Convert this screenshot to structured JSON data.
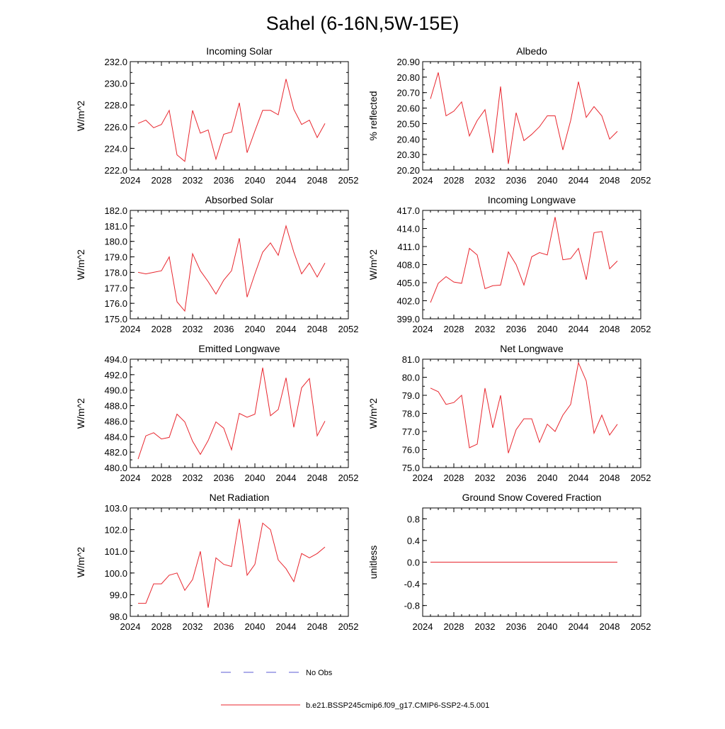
{
  "title": "Sahel (6-16N,5W-15E)",
  "legend": {
    "entries": [
      {
        "label": "No Obs",
        "style": "dashed",
        "color": "#5b5bd6"
      },
      {
        "label": "b.e21.BSSP245cmip6.f09_g17.CMIP6-SSP2-4.5.001",
        "style": "solid",
        "color": "#e8262e"
      }
    ]
  },
  "chart_data": [
    {
      "type": "line",
      "title": "Incoming Solar",
      "ylabel": "W/m^2",
      "xlim": [
        2024,
        2052
      ],
      "ylim": [
        222.0,
        232.0
      ],
      "xticks": [
        2024,
        2028,
        2032,
        2036,
        2040,
        2044,
        2048,
        2052
      ],
      "xtick_labels": [
        "2024",
        "2028",
        "2032",
        "2036",
        "2040",
        "2044",
        "2048",
        "2052"
      ],
      "yticks": [
        222.0,
        224.0,
        226.0,
        228.0,
        230.0,
        232.0
      ],
      "ytick_labels": [
        "222.0",
        "224.0",
        "226.0",
        "228.0",
        "230.0",
        "232.0"
      ],
      "x": [
        2025,
        2026,
        2027,
        2028,
        2029,
        2030,
        2031,
        2032,
        2033,
        2034,
        2035,
        2036,
        2037,
        2038,
        2039,
        2040,
        2041,
        2042,
        2043,
        2044,
        2045,
        2046,
        2047,
        2048,
        2049
      ],
      "values": [
        226.3,
        226.6,
        225.9,
        226.2,
        227.5,
        223.4,
        222.8,
        227.5,
        225.4,
        225.7,
        223.0,
        225.3,
        225.5,
        228.2,
        223.6,
        225.6,
        227.5,
        227.5,
        227.1,
        230.4,
        227.6,
        226.2,
        226.6,
        225.0,
        226.3
      ],
      "color": "#e8262e"
    },
    {
      "type": "line",
      "title": "Albedo",
      "ylabel": "% reflected",
      "xlim": [
        2024,
        2052
      ],
      "ylim": [
        20.2,
        20.9
      ],
      "xticks": [
        2024,
        2028,
        2032,
        2036,
        2040,
        2044,
        2048,
        2052
      ],
      "xtick_labels": [
        "2024",
        "2028",
        "2032",
        "2036",
        "2040",
        "2044",
        "2048",
        "2052"
      ],
      "yticks": [
        20.2,
        20.3,
        20.4,
        20.5,
        20.6,
        20.7,
        20.8,
        20.9
      ],
      "ytick_labels": [
        "20.20",
        "20.30",
        "20.40",
        "20.50",
        "20.60",
        "20.70",
        "20.80",
        "20.90"
      ],
      "x": [
        2025,
        2026,
        2027,
        2028,
        2029,
        2030,
        2031,
        2032,
        2033,
        2034,
        2035,
        2036,
        2037,
        2038,
        2039,
        2040,
        2041,
        2042,
        2043,
        2044,
        2045,
        2046,
        2047,
        2048,
        2049
      ],
      "values": [
        20.66,
        20.83,
        20.55,
        20.58,
        20.64,
        20.42,
        20.52,
        20.59,
        20.31,
        20.74,
        20.24,
        20.57,
        20.39,
        20.43,
        20.48,
        20.55,
        20.55,
        20.33,
        20.52,
        20.77,
        20.54,
        20.61,
        20.55,
        20.4,
        20.45
      ],
      "color": "#e8262e"
    },
    {
      "type": "line",
      "title": "Absorbed Solar",
      "ylabel": "W/m^2",
      "xlim": [
        2024,
        2052
      ],
      "ylim": [
        175.0,
        182.0
      ],
      "xticks": [
        2024,
        2028,
        2032,
        2036,
        2040,
        2044,
        2048,
        2052
      ],
      "xtick_labels": [
        "2024",
        "2028",
        "2032",
        "2036",
        "2040",
        "2044",
        "2048",
        "2052"
      ],
      "yticks": [
        175,
        176,
        177,
        178,
        179,
        180,
        181,
        182
      ],
      "ytick_labels": [
        "175.0",
        "176.0",
        "177.0",
        "178.0",
        "179.0",
        "180.0",
        "181.0",
        "182.0"
      ],
      "x": [
        2025,
        2026,
        2027,
        2028,
        2029,
        2030,
        2031,
        2032,
        2033,
        2034,
        2035,
        2036,
        2037,
        2038,
        2039,
        2040,
        2041,
        2042,
        2043,
        2044,
        2045,
        2046,
        2047,
        2048,
        2049
      ],
      "values": [
        178.0,
        177.9,
        178.0,
        178.1,
        179.0,
        176.1,
        175.5,
        179.2,
        178.1,
        177.4,
        176.6,
        177.5,
        178.1,
        180.2,
        176.4,
        177.9,
        179.3,
        179.9,
        179.1,
        181.0,
        179.3,
        177.9,
        178.6,
        177.7,
        178.6
      ],
      "color": "#e8262e"
    },
    {
      "type": "line",
      "title": "Incoming Longwave",
      "ylabel": "W/m^2",
      "xlim": [
        2024,
        2052
      ],
      "ylim": [
        399.0,
        417.0
      ],
      "xticks": [
        2024,
        2028,
        2032,
        2036,
        2040,
        2044,
        2048,
        2052
      ],
      "xtick_labels": [
        "2024",
        "2028",
        "2032",
        "2036",
        "2040",
        "2044",
        "2048",
        "2052"
      ],
      "yticks": [
        399,
        402,
        405,
        408,
        411,
        414,
        417
      ],
      "ytick_labels": [
        "399.0",
        "402.0",
        "405.0",
        "408.0",
        "411.0",
        "414.0",
        "417.0"
      ],
      "x": [
        2025,
        2026,
        2027,
        2028,
        2029,
        2030,
        2031,
        2032,
        2033,
        2034,
        2035,
        2036,
        2037,
        2038,
        2039,
        2040,
        2041,
        2042,
        2043,
        2044,
        2045,
        2046,
        2047,
        2048,
        2049
      ],
      "values": [
        401.7,
        404.9,
        406.0,
        405.1,
        404.9,
        410.7,
        409.6,
        404.0,
        404.5,
        404.6,
        410.1,
        408.0,
        404.6,
        409.3,
        410.0,
        409.6,
        415.9,
        408.8,
        409.0,
        410.7,
        405.5,
        413.3,
        413.5,
        407.3,
        408.6
      ],
      "color": "#e8262e"
    },
    {
      "type": "line",
      "title": "Emitted Longwave",
      "ylabel": "W/m^2",
      "xlim": [
        2024,
        2052
      ],
      "ylim": [
        480.0,
        494.0
      ],
      "xticks": [
        2024,
        2028,
        2032,
        2036,
        2040,
        2044,
        2048,
        2052
      ],
      "xtick_labels": [
        "2024",
        "2028",
        "2032",
        "2036",
        "2040",
        "2044",
        "2048",
        "2052"
      ],
      "yticks": [
        480,
        482,
        484,
        486,
        488,
        490,
        492,
        494
      ],
      "ytick_labels": [
        "480.0",
        "482.0",
        "484.0",
        "486.0",
        "488.0",
        "490.0",
        "492.0",
        "494.0"
      ],
      "x": [
        2025,
        2026,
        2027,
        2028,
        2029,
        2030,
        2031,
        2032,
        2033,
        2034,
        2035,
        2036,
        2037,
        2038,
        2039,
        2040,
        2041,
        2042,
        2043,
        2044,
        2045,
        2046,
        2047,
        2048,
        2049
      ],
      "values": [
        481.1,
        484.1,
        484.5,
        483.7,
        483.9,
        486.9,
        485.9,
        483.4,
        481.7,
        483.5,
        485.9,
        485.1,
        482.3,
        487.0,
        486.5,
        486.9,
        492.9,
        486.7,
        487.5,
        491.6,
        485.2,
        490.3,
        491.5,
        484.1,
        486.0
      ],
      "color": "#e8262e"
    },
    {
      "type": "line",
      "title": "Net Longwave",
      "ylabel": "W/m^2",
      "xlim": [
        2024,
        2052
      ],
      "ylim": [
        75.0,
        81.0
      ],
      "xticks": [
        2024,
        2028,
        2032,
        2036,
        2040,
        2044,
        2048,
        2052
      ],
      "xtick_labels": [
        "2024",
        "2028",
        "2032",
        "2036",
        "2040",
        "2044",
        "2048",
        "2052"
      ],
      "yticks": [
        75,
        76,
        77,
        78,
        79,
        80,
        81
      ],
      "ytick_labels": [
        "75.0",
        "76.0",
        "77.0",
        "78.0",
        "79.0",
        "80.0",
        "81.0"
      ],
      "x": [
        2025,
        2026,
        2027,
        2028,
        2029,
        2030,
        2031,
        2032,
        2033,
        2034,
        2035,
        2036,
        2037,
        2038,
        2039,
        2040,
        2041,
        2042,
        2043,
        2044,
        2045,
        2046,
        2047,
        2048,
        2049
      ],
      "values": [
        79.4,
        79.2,
        78.5,
        78.6,
        79.0,
        76.1,
        76.3,
        79.4,
        77.2,
        79.0,
        75.8,
        77.1,
        77.7,
        77.7,
        76.4,
        77.4,
        77.0,
        77.9,
        78.5,
        80.8,
        79.8,
        76.9,
        77.9,
        76.8,
        77.4
      ],
      "color": "#e8262e"
    },
    {
      "type": "line",
      "title": "Net Radiation",
      "ylabel": "W/m^2",
      "xlim": [
        2024,
        2052
      ],
      "ylim": [
        98.0,
        103.0
      ],
      "xticks": [
        2024,
        2028,
        2032,
        2036,
        2040,
        2044,
        2048,
        2052
      ],
      "xtick_labels": [
        "2024",
        "2028",
        "2032",
        "2036",
        "2040",
        "2044",
        "2048",
        "2052"
      ],
      "yticks": [
        98,
        99,
        100,
        101,
        102,
        103
      ],
      "ytick_labels": [
        "98.0",
        "99.0",
        "100.0",
        "101.0",
        "102.0",
        "103.0"
      ],
      "x": [
        2025,
        2026,
        2027,
        2028,
        2029,
        2030,
        2031,
        2032,
        2033,
        2034,
        2035,
        2036,
        2037,
        2038,
        2039,
        2040,
        2041,
        2042,
        2043,
        2044,
        2045,
        2046,
        2047,
        2048,
        2049
      ],
      "values": [
        98.6,
        98.6,
        99.5,
        99.5,
        99.9,
        100.0,
        99.2,
        99.7,
        101.0,
        98.4,
        100.7,
        100.4,
        100.3,
        102.5,
        99.9,
        100.4,
        102.3,
        102.0,
        100.6,
        100.2,
        99.6,
        100.9,
        100.7,
        100.9,
        101.2
      ],
      "color": "#e8262e"
    },
    {
      "type": "line",
      "title": "Ground Snow Covered Fraction",
      "ylabel": "unitless",
      "xlim": [
        2024,
        2052
      ],
      "ylim": [
        -1.0,
        1.0
      ],
      "xticks": [
        2024,
        2028,
        2032,
        2036,
        2040,
        2044,
        2048,
        2052
      ],
      "xtick_labels": [
        "2024",
        "2028",
        "2032",
        "2036",
        "2040",
        "2044",
        "2048",
        "2052"
      ],
      "yticks": [
        -0.8,
        -0.4,
        0.0,
        0.4,
        0.8
      ],
      "ytick_labels": [
        "-0.8",
        "-0.4",
        "0.0",
        "0.4",
        "0.8"
      ],
      "x": [
        2025,
        2026,
        2027,
        2028,
        2029,
        2030,
        2031,
        2032,
        2033,
        2034,
        2035,
        2036,
        2037,
        2038,
        2039,
        2040,
        2041,
        2042,
        2043,
        2044,
        2045,
        2046,
        2047,
        2048,
        2049
      ],
      "values": [
        0,
        0,
        0,
        0,
        0,
        0,
        0,
        0,
        0,
        0,
        0,
        0,
        0,
        0,
        0,
        0,
        0,
        0,
        0,
        0,
        0,
        0,
        0,
        0,
        0
      ],
      "color": "#e8262e"
    }
  ]
}
